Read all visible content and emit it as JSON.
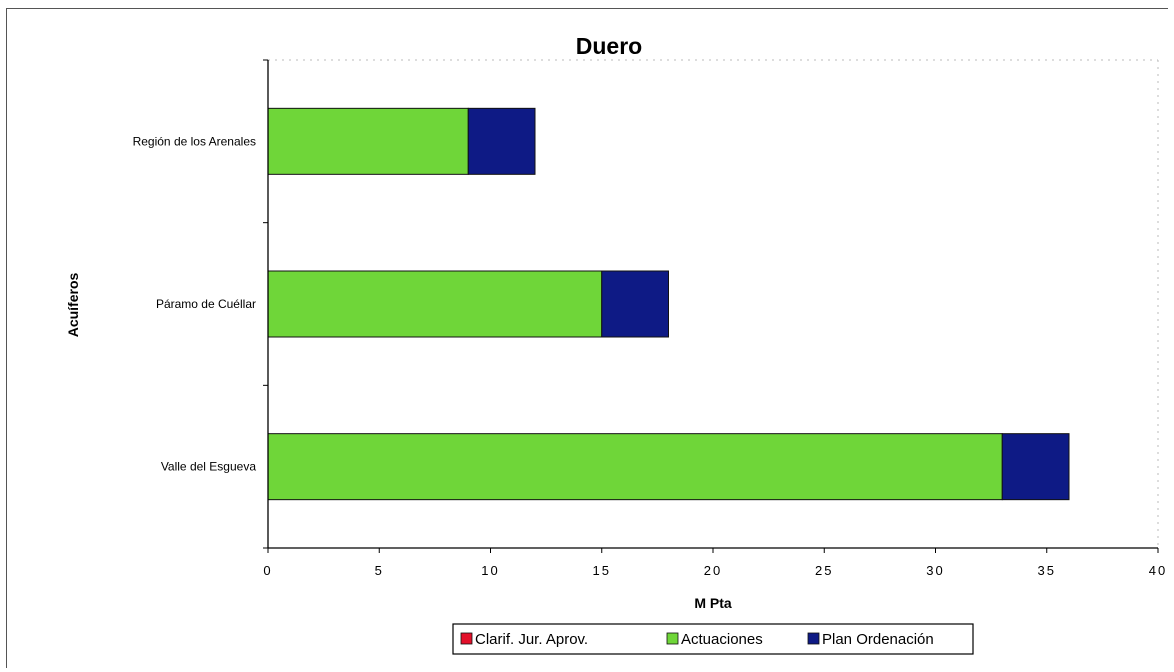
{
  "chart_data": {
    "type": "bar",
    "orientation": "horizontal",
    "stacked": true,
    "title": "Duero",
    "xlabel": "M Pta",
    "ylabel": "Acuíferos",
    "xlim": [
      0,
      40
    ],
    "x_ticks": [
      0,
      5,
      10,
      15,
      20,
      25,
      30,
      35,
      40
    ],
    "x_tick_labels": [
      "0",
      "5",
      "10",
      "15",
      "20",
      "25",
      "30",
      "35",
      "40"
    ],
    "grid": false,
    "legend_position": "bottom",
    "categories": [
      "Región de los Arenales",
      "Páramo de Cuéllar",
      "Valle del Esgueva"
    ],
    "series": [
      {
        "name": "Clarif. Jur. Aprov.",
        "color": "#e3102a",
        "values": [
          0,
          0,
          0
        ]
      },
      {
        "name": "Actuaciones",
        "color": "#6fd639",
        "values": [
          9,
          15,
          33
        ]
      },
      {
        "name": "Plan Ordenación",
        "color": "#0e1a85",
        "values": [
          3,
          3,
          3
        ]
      }
    ]
  }
}
